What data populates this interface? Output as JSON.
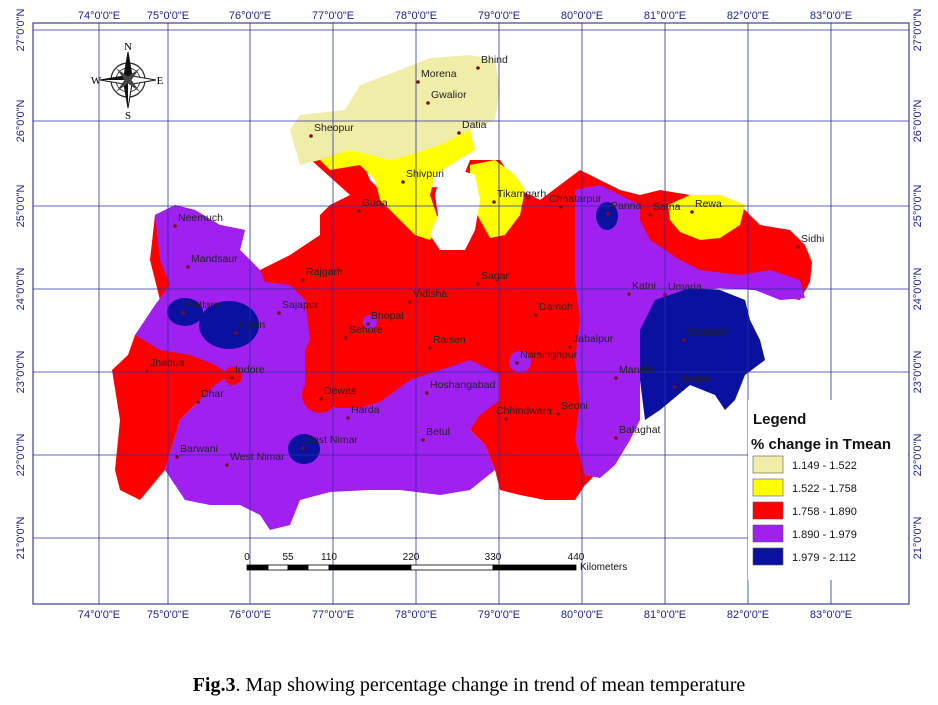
{
  "map": {
    "lon_ticks": [
      "74°0'0\"E",
      "75°0'0\"E",
      "76°0'0\"E",
      "77°0'0\"E",
      "78°0'0\"E",
      "79°0'0\"E",
      "80°0'0\"E",
      "81°0'0\"E",
      "82°0'0\"E",
      "83°0'0\"E"
    ],
    "lat_ticks": [
      "27°0'0\"N",
      "26°0'0\"N",
      "25°0'0\"N",
      "24°0'0\"N",
      "23°0'0\"N",
      "22°0'0\"N",
      "21°0'0\"N"
    ],
    "compass": {
      "n": "N",
      "s": "S",
      "e": "E",
      "w": "W"
    },
    "cities": [
      {
        "name": "Bhind"
      },
      {
        "name": "Morena"
      },
      {
        "name": "Gwalior"
      },
      {
        "name": "Datia"
      },
      {
        "name": "Sheopur"
      },
      {
        "name": "Shivpuri"
      },
      {
        "name": "Tikamgarh"
      },
      {
        "name": "Guna"
      },
      {
        "name": "Chhatarpur"
      },
      {
        "name": "Panna"
      },
      {
        "name": "Satna"
      },
      {
        "name": "Rewa"
      },
      {
        "name": "Sidhi"
      },
      {
        "name": "Neemuch"
      },
      {
        "name": "Mandsaur"
      },
      {
        "name": "Rajgarh"
      },
      {
        "name": "Sagar"
      },
      {
        "name": "Ratlam"
      },
      {
        "name": "Sajapur"
      },
      {
        "name": "Vidisha"
      },
      {
        "name": "Damoh"
      },
      {
        "name": "Katni"
      },
      {
        "name": "Umaria"
      },
      {
        "name": "Ujjain"
      },
      {
        "name": "Bhopal"
      },
      {
        "name": "Sehore"
      },
      {
        "name": "Jabalpur"
      },
      {
        "name": "Shahdol"
      },
      {
        "name": "Raisen"
      },
      {
        "name": "Narsinghpur"
      },
      {
        "name": "Jhabua"
      },
      {
        "name": "Indore"
      },
      {
        "name": "Mandla"
      },
      {
        "name": "Dindori"
      },
      {
        "name": "Dhar"
      },
      {
        "name": "Dewas"
      },
      {
        "name": "Hoshangabad"
      },
      {
        "name": "Harda"
      },
      {
        "name": "Chhindwara"
      },
      {
        "name": "Seoni"
      },
      {
        "name": "East Nimar"
      },
      {
        "name": "Betul"
      },
      {
        "name": "Balaghat"
      },
      {
        "name": "Barwani"
      },
      {
        "name": "West Nimar"
      }
    ],
    "legend": {
      "title": "Legend",
      "subtitle": "% change in Tmean",
      "items": [
        {
          "label": "1.149 - 1.522",
          "color": "#f0eda8"
        },
        {
          "label": "1.522 - 1.758",
          "color": "#ffff00"
        },
        {
          "label": "1.758 - 1.890",
          "color": "#ff0000"
        },
        {
          "label": "1.890 - 1.979",
          "color": "#a020f0"
        },
        {
          "label": "1.979 - 2.112",
          "color": "#0a10a0"
        }
      ]
    },
    "scale": {
      "ticks": [
        "0",
        "55",
        "110",
        "220",
        "330",
        "440"
      ],
      "unit": "Kilometers"
    }
  },
  "caption": {
    "fig": "Fig.3",
    "text": ". Map showing percentage change in trend of mean temperature"
  }
}
